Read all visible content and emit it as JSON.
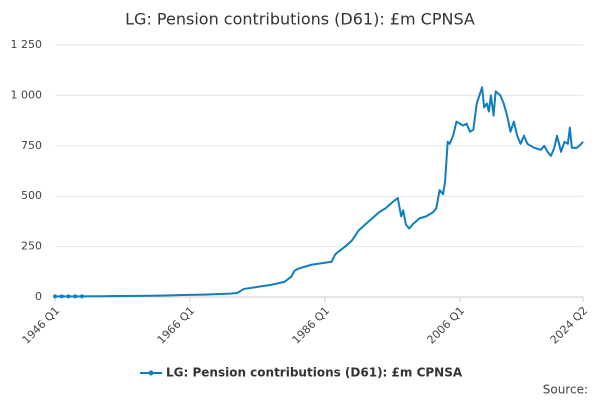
{
  "chart_data": {
    "type": "line",
    "title": "LG: Pension contributions (D61): £m CPNSA",
    "source": "Source:",
    "x": [
      1946,
      1947,
      1948,
      1949,
      1950,
      1951,
      1953,
      1955,
      1957,
      1960,
      1963,
      1965,
      1968,
      1970,
      1972,
      1973,
      1974,
      1975,
      1976,
      1978,
      1980,
      1981,
      1981.5,
      1982,
      1983,
      1984,
      1985,
      1986,
      1987,
      1987.5,
      1988,
      1989,
      1990,
      1991,
      1992,
      1993,
      1994,
      1995,
      1996,
      1996.8,
      1997.3,
      1997.6,
      1998,
      1998.5,
      1999,
      2000,
      2001,
      2002,
      2002.5,
      2003,
      2003.5,
      2003.8,
      2004.2,
      2004.5,
      2005,
      2005.5,
      2006,
      2006.5,
      2007,
      2007.5,
      2008,
      2008.5,
      2009.3,
      2009.6,
      2010,
      2010.3,
      2010.6,
      2011,
      2011.3,
      2012,
      2012.5,
      2013,
      2013.5,
      2014,
      2014.5,
      2015,
      2015.5,
      2016,
      2017,
      2018,
      2018.5,
      2019,
      2019.5,
      2020,
      2020.4,
      2021,
      2021.5,
      2022,
      2022.3,
      2022.6,
      2023.3,
      2023.7,
      2024,
      2024.25
    ],
    "series": [
      {
        "name": "LG: Pension contributions (D61): £m CPNSA",
        "color": "#0f7fc0",
        "values": [
          3,
          3,
          3,
          3,
          3,
          4,
          4,
          5,
          5,
          6,
          8,
          10,
          12,
          14,
          17,
          20,
          40,
          45,
          50,
          60,
          75,
          100,
          130,
          140,
          150,
          160,
          165,
          170,
          175,
          210,
          225,
          250,
          280,
          330,
          360,
          390,
          420,
          440,
          470,
          491,
          400,
          430,
          360,
          340,
          360,
          390,
          400,
          420,
          440,
          530,
          510,
          570,
          770,
          760,
          800,
          870,
          860,
          850,
          860,
          820,
          830,
          960,
          1040,
          940,
          960,
          920,
          1000,
          900,
          1020,
          1000,
          960,
          900,
          820,
          870,
          800,
          760,
          800,
          760,
          740,
          730,
          750,
          720,
          700,
          740,
          800,
          720,
          770,
          760,
          840,
          740,
          740,
          750,
          760,
          770
        ]
      }
    ],
    "xlim": [
      1946,
      2024.25
    ],
    "xticks": [
      {
        "value": 1946,
        "label": "1946 Q1"
      },
      {
        "value": 1966,
        "label": "1966 Q1"
      },
      {
        "value": 1986,
        "label": "1986 Q1"
      },
      {
        "value": 2006,
        "label": "2006 Q1"
      },
      {
        "value": 2024.25,
        "label": "2024 Q2"
      }
    ],
    "ylim": [
      0,
      1250
    ],
    "yticks": [
      0,
      250,
      500,
      750,
      {
        "value": 1000,
        "label": "1 000"
      },
      {
        "value": 1250,
        "label": "1 250"
      }
    ],
    "grid": true
  }
}
